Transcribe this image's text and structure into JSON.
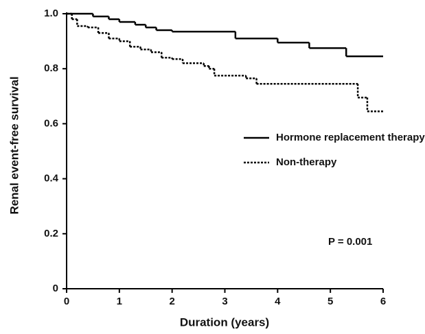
{
  "chart_data": {
    "type": "step",
    "xlabel": "Duration (years)",
    "ylabel": "Renal event-free survival",
    "annotation": "P = 0.001",
    "xlim": [
      0,
      6
    ],
    "xticks": [
      0,
      1,
      2,
      3,
      4,
      5,
      6
    ],
    "ylim": [
      0,
      1
    ],
    "yticks": [
      0,
      0.2,
      0.4,
      0.6,
      0.8,
      {
        "value": 1,
        "label": "1.0"
      }
    ],
    "grid": false,
    "series": [
      {
        "name": "Hormone replacement therapy",
        "color": "#000000",
        "linestyle": "solid",
        "x": [
          0,
          0.5,
          0.8,
          1.0,
          1.3,
          1.5,
          1.7,
          2.0,
          3.2,
          4.0,
          4.6,
          5.3
        ],
        "values": [
          1.0,
          0.99,
          0.98,
          0.97,
          0.96,
          0.95,
          0.94,
          0.935,
          0.91,
          0.895,
          0.875,
          0.845
        ]
      },
      {
        "name": "Non-therapy",
        "color": "#000000",
        "linestyle": "dotted",
        "x": [
          0,
          0.1,
          0.2,
          0.4,
          0.6,
          0.8,
          1.0,
          1.2,
          1.4,
          1.6,
          1.8,
          2.0,
          2.2,
          2.6,
          2.7,
          2.8,
          3.4,
          3.6,
          5.52,
          5.7
        ],
        "values": [
          1.0,
          0.98,
          0.955,
          0.95,
          0.93,
          0.91,
          0.9,
          0.88,
          0.87,
          0.86,
          0.84,
          0.835,
          0.82,
          0.81,
          0.8,
          0.775,
          0.765,
          0.745,
          0.695,
          0.645
        ]
      }
    ]
  }
}
